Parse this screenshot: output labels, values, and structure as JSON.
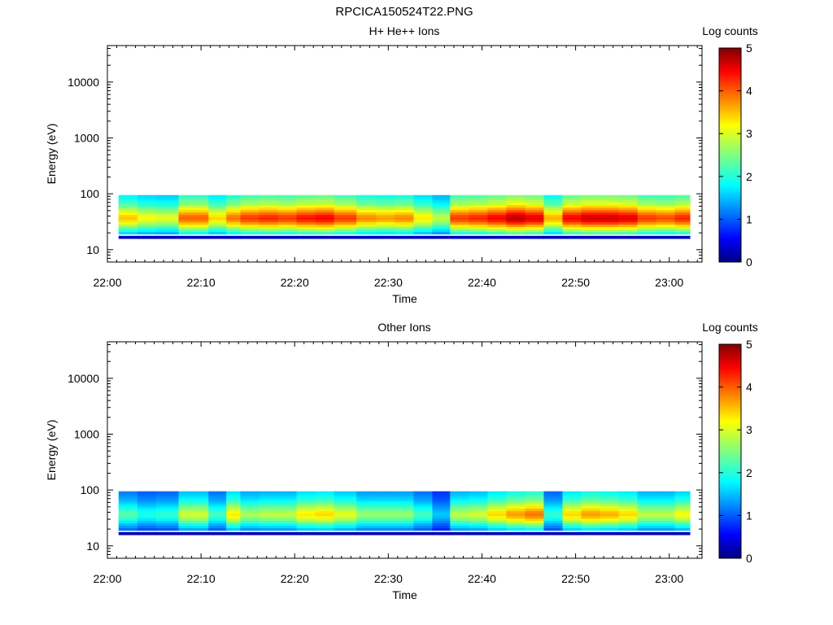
{
  "figure": {
    "title": "RPCICA150524T22.PNG"
  },
  "chart_data": [
    {
      "type": "heatmap",
      "title": "H+ He++ Ions",
      "xlabel": "Time",
      "ylabel": "Energy (eV)",
      "colorbar_label": "Log counts",
      "colorbar_ticks": [
        "0",
        "1",
        "2",
        "3",
        "4",
        "5"
      ],
      "colorbar_range": [
        0,
        5
      ],
      "x_ticks": [
        "22:00",
        "22:10",
        "22:20",
        "22:30",
        "22:40",
        "22:50",
        "23:00"
      ],
      "y_ticks": [
        "10",
        "100",
        "1000",
        "10000"
      ],
      "y_scale": "log",
      "ylim": [
        6,
        45000
      ],
      "xlim_minutes": [
        0,
        63.5
      ],
      "band_energy_range": [
        19,
        95
      ],
      "column_start_minutes": [
        1.2,
        3.2,
        5.2,
        7.6,
        10.8,
        12.7,
        14.2,
        16.2,
        18.2,
        20.2,
        22.2,
        24.2,
        26.6,
        28.7,
        30.7,
        32.7,
        34.7,
        36.6,
        38.6,
        40.6,
        42.6,
        44.6,
        46.6,
        48.6,
        50.6,
        52.6,
        54.6,
        56.6,
        58.6,
        60.6
      ],
      "column_end_minutes": [
        3.2,
        5.2,
        7.6,
        10.8,
        12.7,
        14.2,
        16.2,
        18.2,
        20.2,
        22.2,
        24.2,
        26.6,
        28.7,
        30.7,
        32.7,
        34.7,
        36.6,
        38.6,
        40.6,
        42.6,
        44.6,
        46.6,
        48.6,
        50.6,
        52.6,
        54.6,
        56.6,
        58.6,
        60.6,
        62.2
      ],
      "column_peak_log_counts": [
        3.4,
        3.1,
        3.0,
        3.9,
        3.3,
        3.8,
        4.1,
        4.2,
        4.1,
        4.3,
        4.4,
        4.1,
        3.7,
        3.6,
        3.7,
        3.2,
        2.8,
        4.1,
        4.2,
        4.4,
        4.7,
        4.5,
        3.5,
        4.4,
        4.6,
        4.6,
        4.5,
        4.1,
        4.0,
        4.2
      ],
      "low_energy_fringe_log_counts": 0.3
    },
    {
      "type": "heatmap",
      "title": "Other Ions",
      "xlabel": "Time",
      "ylabel": "Energy (eV)",
      "colorbar_label": "Log counts",
      "colorbar_ticks": [
        "0",
        "1",
        "2",
        "3",
        "4",
        "5"
      ],
      "colorbar_range": [
        0,
        5
      ],
      "x_ticks": [
        "22:00",
        "22:10",
        "22:20",
        "22:30",
        "22:40",
        "22:50",
        "23:00"
      ],
      "y_ticks": [
        "10",
        "100",
        "1000",
        "10000"
      ],
      "y_scale": "log",
      "ylim": [
        6,
        45000
      ],
      "xlim_minutes": [
        0,
        63.5
      ],
      "band_energy_range": [
        19,
        95
      ],
      "column_start_minutes": [
        1.2,
        3.2,
        5.2,
        7.6,
        10.8,
        12.7,
        14.2,
        16.2,
        18.2,
        20.2,
        22.2,
        24.2,
        26.6,
        28.7,
        30.7,
        32.7,
        34.7,
        36.6,
        38.6,
        40.6,
        42.6,
        44.6,
        46.6,
        48.6,
        50.6,
        52.6,
        54.6,
        56.6,
        58.6,
        60.6
      ],
      "column_end_minutes": [
        3.2,
        5.2,
        7.6,
        10.8,
        12.7,
        14.2,
        16.2,
        18.2,
        20.2,
        22.2,
        24.2,
        26.6,
        28.7,
        30.7,
        32.7,
        34.7,
        36.6,
        38.6,
        40.6,
        42.6,
        44.6,
        46.6,
        48.6,
        50.6,
        52.6,
        54.6,
        56.6,
        58.6,
        60.6,
        62.2
      ],
      "column_peak_log_counts": [
        2.3,
        2.0,
        2.1,
        2.9,
        2.2,
        3.2,
        2.7,
        2.8,
        2.8,
        3.2,
        3.3,
        3.0,
        2.6,
        2.6,
        2.6,
        2.2,
        1.6,
        2.8,
        2.9,
        3.3,
        3.6,
        3.8,
        2.1,
        3.3,
        3.6,
        3.5,
        3.3,
        2.8,
        2.8,
        3.1
      ],
      "low_energy_fringe_log_counts": 0.3
    }
  ],
  "colors": {
    "background": "#ffffff",
    "axis": "#000000",
    "colormap": [
      "#00007f",
      "#0000ff",
      "#007fff",
      "#00ffff",
      "#7fff7f",
      "#ffff00",
      "#ff7f00",
      "#ff0000",
      "#7f0000"
    ]
  }
}
